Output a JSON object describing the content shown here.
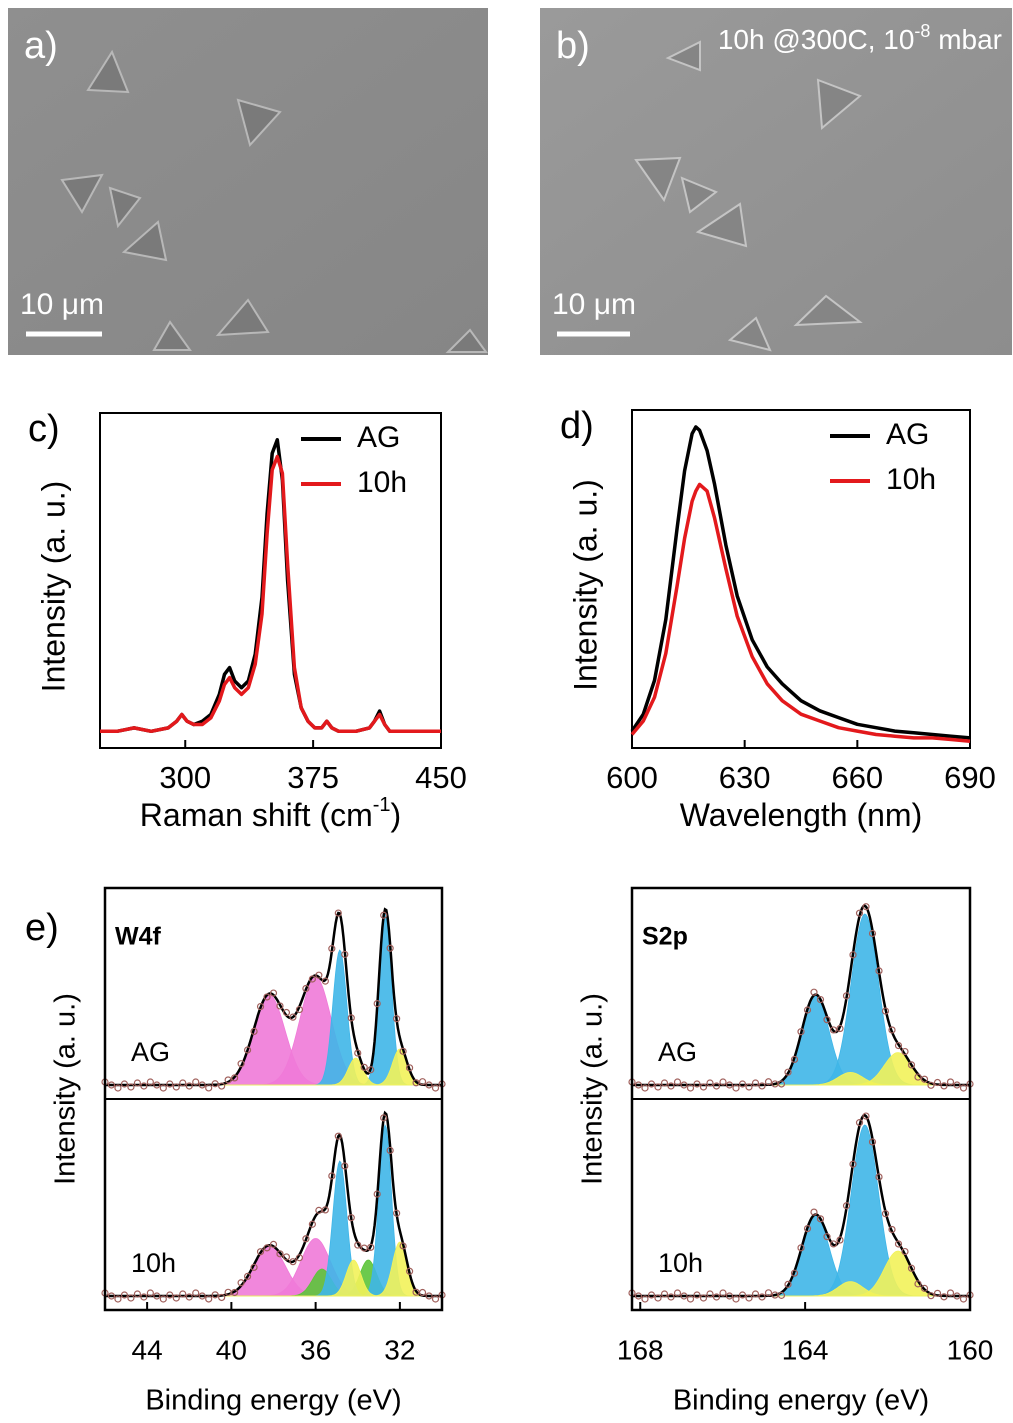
{
  "images": [
    {
      "label": "a)",
      "scale_bar": "10 μm"
    },
    {
      "label": "b)",
      "scale_bar": "10 μm",
      "annotation": "10h @300C, 10",
      "annotation_sup": "-8",
      "annotation_tail": " mbar"
    }
  ],
  "chart_data": [
    {
      "type": "line",
      "label": "c)",
      "x_label": "Raman shift (cm",
      "x_label_sup": "-1",
      "x_label_tail": ")",
      "y_label": "Intensity (a. u.)",
      "xlim": [
        250,
        450
      ],
      "xticks": [
        300,
        375,
        450
      ],
      "ylim": [
        0,
        1
      ],
      "legend": "upper right",
      "x": [
        250,
        260,
        270,
        280,
        290,
        295,
        298,
        301,
        305,
        310,
        315,
        320,
        323,
        326,
        329,
        333,
        337,
        341,
        345,
        348,
        351,
        354,
        357,
        360,
        364,
        368,
        372,
        376,
        380,
        383,
        386,
        390,
        400,
        408,
        411,
        414,
        417,
        420,
        430,
        440,
        450
      ],
      "series": [
        {
          "name": "AG",
          "color": "#000000",
          "values": [
            0.05,
            0.05,
            0.06,
            0.05,
            0.06,
            0.08,
            0.1,
            0.08,
            0.07,
            0.08,
            0.1,
            0.16,
            0.22,
            0.24,
            0.2,
            0.18,
            0.2,
            0.28,
            0.45,
            0.7,
            0.88,
            0.92,
            0.8,
            0.5,
            0.22,
            0.12,
            0.08,
            0.06,
            0.06,
            0.08,
            0.06,
            0.05,
            0.05,
            0.06,
            0.08,
            0.11,
            0.07,
            0.05,
            0.05,
            0.05,
            0.05
          ]
        },
        {
          "name": "10h",
          "color": "#e3191c",
          "values": [
            0.05,
            0.05,
            0.06,
            0.05,
            0.06,
            0.08,
            0.1,
            0.08,
            0.07,
            0.07,
            0.09,
            0.14,
            0.19,
            0.21,
            0.18,
            0.16,
            0.18,
            0.25,
            0.4,
            0.64,
            0.83,
            0.87,
            0.82,
            0.55,
            0.24,
            0.12,
            0.08,
            0.06,
            0.06,
            0.08,
            0.06,
            0.05,
            0.05,
            0.06,
            0.08,
            0.1,
            0.07,
            0.05,
            0.05,
            0.05,
            0.05
          ]
        }
      ]
    },
    {
      "type": "line",
      "label": "d)",
      "x_label": "Wavelength (nm)",
      "y_label": "Intensity (a. u.)",
      "xlim": [
        600,
        690
      ],
      "xticks": [
        600,
        630,
        660,
        690
      ],
      "ylim": [
        0,
        1
      ],
      "legend": "upper right",
      "x": [
        600,
        603,
        606,
        609,
        612,
        614,
        616,
        617,
        618,
        620,
        622,
        625,
        628,
        632,
        636,
        640,
        645,
        650,
        655,
        660,
        665,
        670,
        675,
        680,
        685,
        690
      ],
      "series": [
        {
          "name": "AG",
          "color": "#000000",
          "values": [
            0.05,
            0.1,
            0.2,
            0.38,
            0.65,
            0.82,
            0.93,
            0.95,
            0.94,
            0.88,
            0.78,
            0.6,
            0.45,
            0.32,
            0.24,
            0.19,
            0.14,
            0.11,
            0.09,
            0.07,
            0.06,
            0.05,
            0.045,
            0.04,
            0.035,
            0.03
          ]
        },
        {
          "name": "10h",
          "color": "#e3191c",
          "values": [
            0.04,
            0.08,
            0.15,
            0.28,
            0.48,
            0.62,
            0.73,
            0.76,
            0.78,
            0.76,
            0.68,
            0.53,
            0.39,
            0.27,
            0.19,
            0.14,
            0.1,
            0.08,
            0.06,
            0.05,
            0.04,
            0.035,
            0.03,
            0.03,
            0.025,
            0.02
          ]
        }
      ]
    },
    {
      "type": "xps",
      "label": "e)",
      "title": "W4f",
      "x_label": "Binding  energy  (eV)",
      "y_label": "Intensity (a. u.)",
      "xlim": [
        46,
        30
      ],
      "xticks": [
        44,
        40,
        36,
        32
      ],
      "ylim": [
        0,
        1.05
      ],
      "panels": [
        {
          "name": "AG",
          "components": [
            {
              "color": "#f07ad8",
              "center": 38.2,
              "height": 0.5,
              "sigma": 0.75
            },
            {
              "color": "#f07ad8",
              "center": 36.0,
              "height": 0.6,
              "sigma": 0.75
            },
            {
              "color": "#3fb6e8",
              "center": 34.85,
              "height": 0.75,
              "sigma": 0.33
            },
            {
              "color": "#3fb6e8",
              "center": 32.7,
              "height": 0.95,
              "sigma": 0.3
            },
            {
              "color": "#f2f25a",
              "center": 34.1,
              "height": 0.15,
              "sigma": 0.35
            },
            {
              "color": "#f2f25a",
              "center": 32.0,
              "height": 0.2,
              "sigma": 0.35
            }
          ]
        },
        {
          "name": "10h",
          "components": [
            {
              "color": "#f07ad8",
              "center": 38.2,
              "height": 0.28,
              "sigma": 0.75
            },
            {
              "color": "#f07ad8",
              "center": 36.0,
              "height": 0.32,
              "sigma": 0.7
            },
            {
              "color": "#5cc43a",
              "center": 35.7,
              "height": 0.15,
              "sigma": 0.45
            },
            {
              "color": "#5cc43a",
              "center": 33.5,
              "height": 0.2,
              "sigma": 0.4
            },
            {
              "color": "#3fb6e8",
              "center": 34.85,
              "height": 0.75,
              "sigma": 0.33
            },
            {
              "color": "#3fb6e8",
              "center": 32.7,
              "height": 0.95,
              "sigma": 0.3
            },
            {
              "color": "#f2f25a",
              "center": 34.2,
              "height": 0.2,
              "sigma": 0.35
            },
            {
              "color": "#f2f25a",
              "center": 32.0,
              "height": 0.3,
              "sigma": 0.35
            }
          ]
        }
      ]
    },
    {
      "type": "xps",
      "title": "S2p",
      "x_label": "Binding  energy  (eV)",
      "y_label": "Intensity (a. u.)",
      "xlim": [
        168.2,
        160
      ],
      "xticks": [
        168,
        164,
        160
      ],
      "ylim": [
        0,
        1.05
      ],
      "panels": [
        {
          "name": "AG",
          "components": [
            {
              "color": "#3fb6e8",
              "center": 163.75,
              "height": 0.5,
              "sigma": 0.33
            },
            {
              "color": "#3fb6e8",
              "center": 162.55,
              "height": 0.95,
              "sigma": 0.33
            },
            {
              "color": "#f2f25a",
              "center": 162.9,
              "height": 0.07,
              "sigma": 0.3
            },
            {
              "color": "#f2f25a",
              "center": 161.75,
              "height": 0.18,
              "sigma": 0.33
            }
          ]
        },
        {
          "name": "10h",
          "components": [
            {
              "color": "#3fb6e8",
              "center": 163.75,
              "height": 0.45,
              "sigma": 0.33
            },
            {
              "color": "#3fb6e8",
              "center": 162.55,
              "height": 0.95,
              "sigma": 0.33
            },
            {
              "color": "#f2f25a",
              "center": 162.9,
              "height": 0.08,
              "sigma": 0.3
            },
            {
              "color": "#f2f25a",
              "center": 161.75,
              "height": 0.25,
              "sigma": 0.33
            }
          ]
        }
      ]
    }
  ]
}
